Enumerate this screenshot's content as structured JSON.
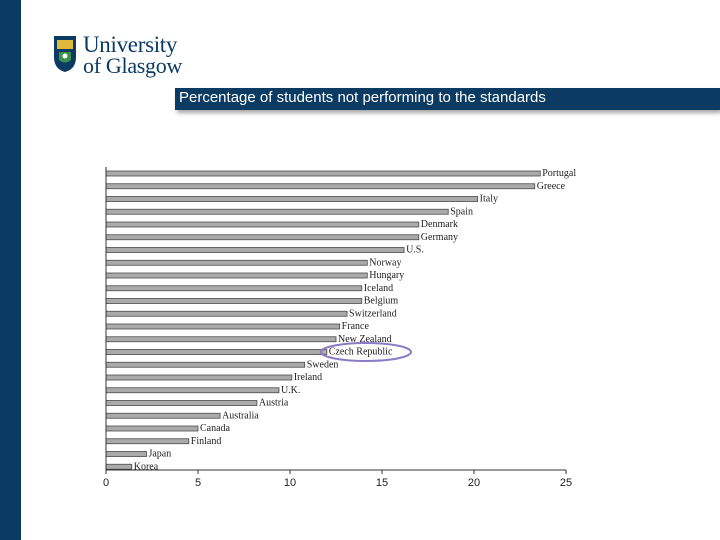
{
  "header": {
    "logo_line1": "University",
    "logo_line2": "of Glasgow",
    "title": "Percentage of students not performing to the standards"
  },
  "colors": {
    "brand_navy": "#0b3a63",
    "bar_fill": "#aaaaaa",
    "highlight": "#8a7bc4"
  },
  "chart_data": {
    "type": "bar",
    "orientation": "horizontal",
    "title": "Percentage of students not performing to the standards",
    "xlabel": "",
    "ylabel": "",
    "xlim": [
      0,
      25
    ],
    "xticks": [
      0,
      5,
      10,
      15,
      20,
      25
    ],
    "grid": false,
    "categories": [
      "Portugal",
      "Greece",
      "Italy",
      "Spain",
      "Denmark",
      "Germany",
      "U.S.",
      "Norway",
      "Hungary",
      "Iceland",
      "Belgium",
      "Switzerland",
      "France",
      "New Zealand",
      "Czech Republic",
      "Sweden",
      "Ireland",
      "U.K.",
      "Austria",
      "Australia",
      "Canada",
      "Finland",
      "Japan",
      "Korea"
    ],
    "values": [
      23.6,
      23.3,
      20.2,
      18.6,
      17.0,
      17.0,
      16.2,
      14.2,
      14.2,
      13.9,
      13.9,
      13.1,
      12.7,
      12.5,
      12.0,
      10.8,
      10.1,
      9.4,
      8.2,
      6.2,
      5.0,
      4.5,
      2.2,
      1.4
    ],
    "highlighted_category": "Czech Republic"
  }
}
